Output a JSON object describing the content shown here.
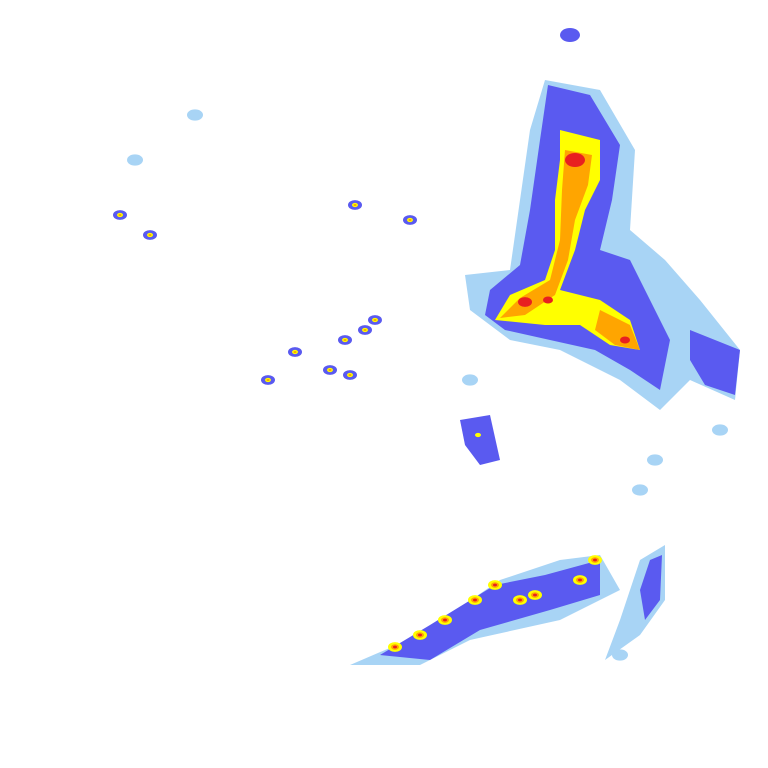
{
  "radar": {
    "colors": {
      "background": "#ffffff",
      "very_light": "#a8d4f5",
      "light": "#5a5af0",
      "moderate": "#ffff00",
      "heavy": "#ffa500",
      "intense": "#e82020"
    }
  }
}
